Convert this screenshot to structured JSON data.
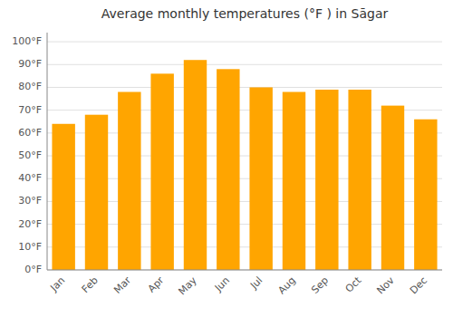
{
  "chart_data": {
    "type": "bar",
    "title": "Average monthly temperatures (°F ) in Sāgar",
    "categories": [
      "Jan",
      "Feb",
      "Mar",
      "Apr",
      "May",
      "Jun",
      "Jul",
      "Aug",
      "Sep",
      "Oct",
      "Nov",
      "Dec"
    ],
    "values": [
      64,
      68,
      78,
      86,
      92,
      88,
      80,
      78,
      79,
      79,
      72,
      66
    ],
    "color": "#FFA500",
    "ylim": [
      0,
      104
    ],
    "yticks": [
      {
        "value": 0,
        "label": "0°F"
      },
      {
        "value": 10,
        "label": "10°F"
      },
      {
        "value": 20,
        "label": "20°F"
      },
      {
        "value": 30,
        "label": "30°F"
      },
      {
        "value": 40,
        "label": "40°F"
      },
      {
        "value": 50,
        "label": "50°F"
      },
      {
        "value": 60,
        "label": "60°F"
      },
      {
        "value": 70,
        "label": "70°F"
      },
      {
        "value": 80,
        "label": "80°F"
      },
      {
        "value": 90,
        "label": "90°F"
      },
      {
        "value": 100,
        "label": "100°F"
      }
    ],
    "grid": true
  }
}
